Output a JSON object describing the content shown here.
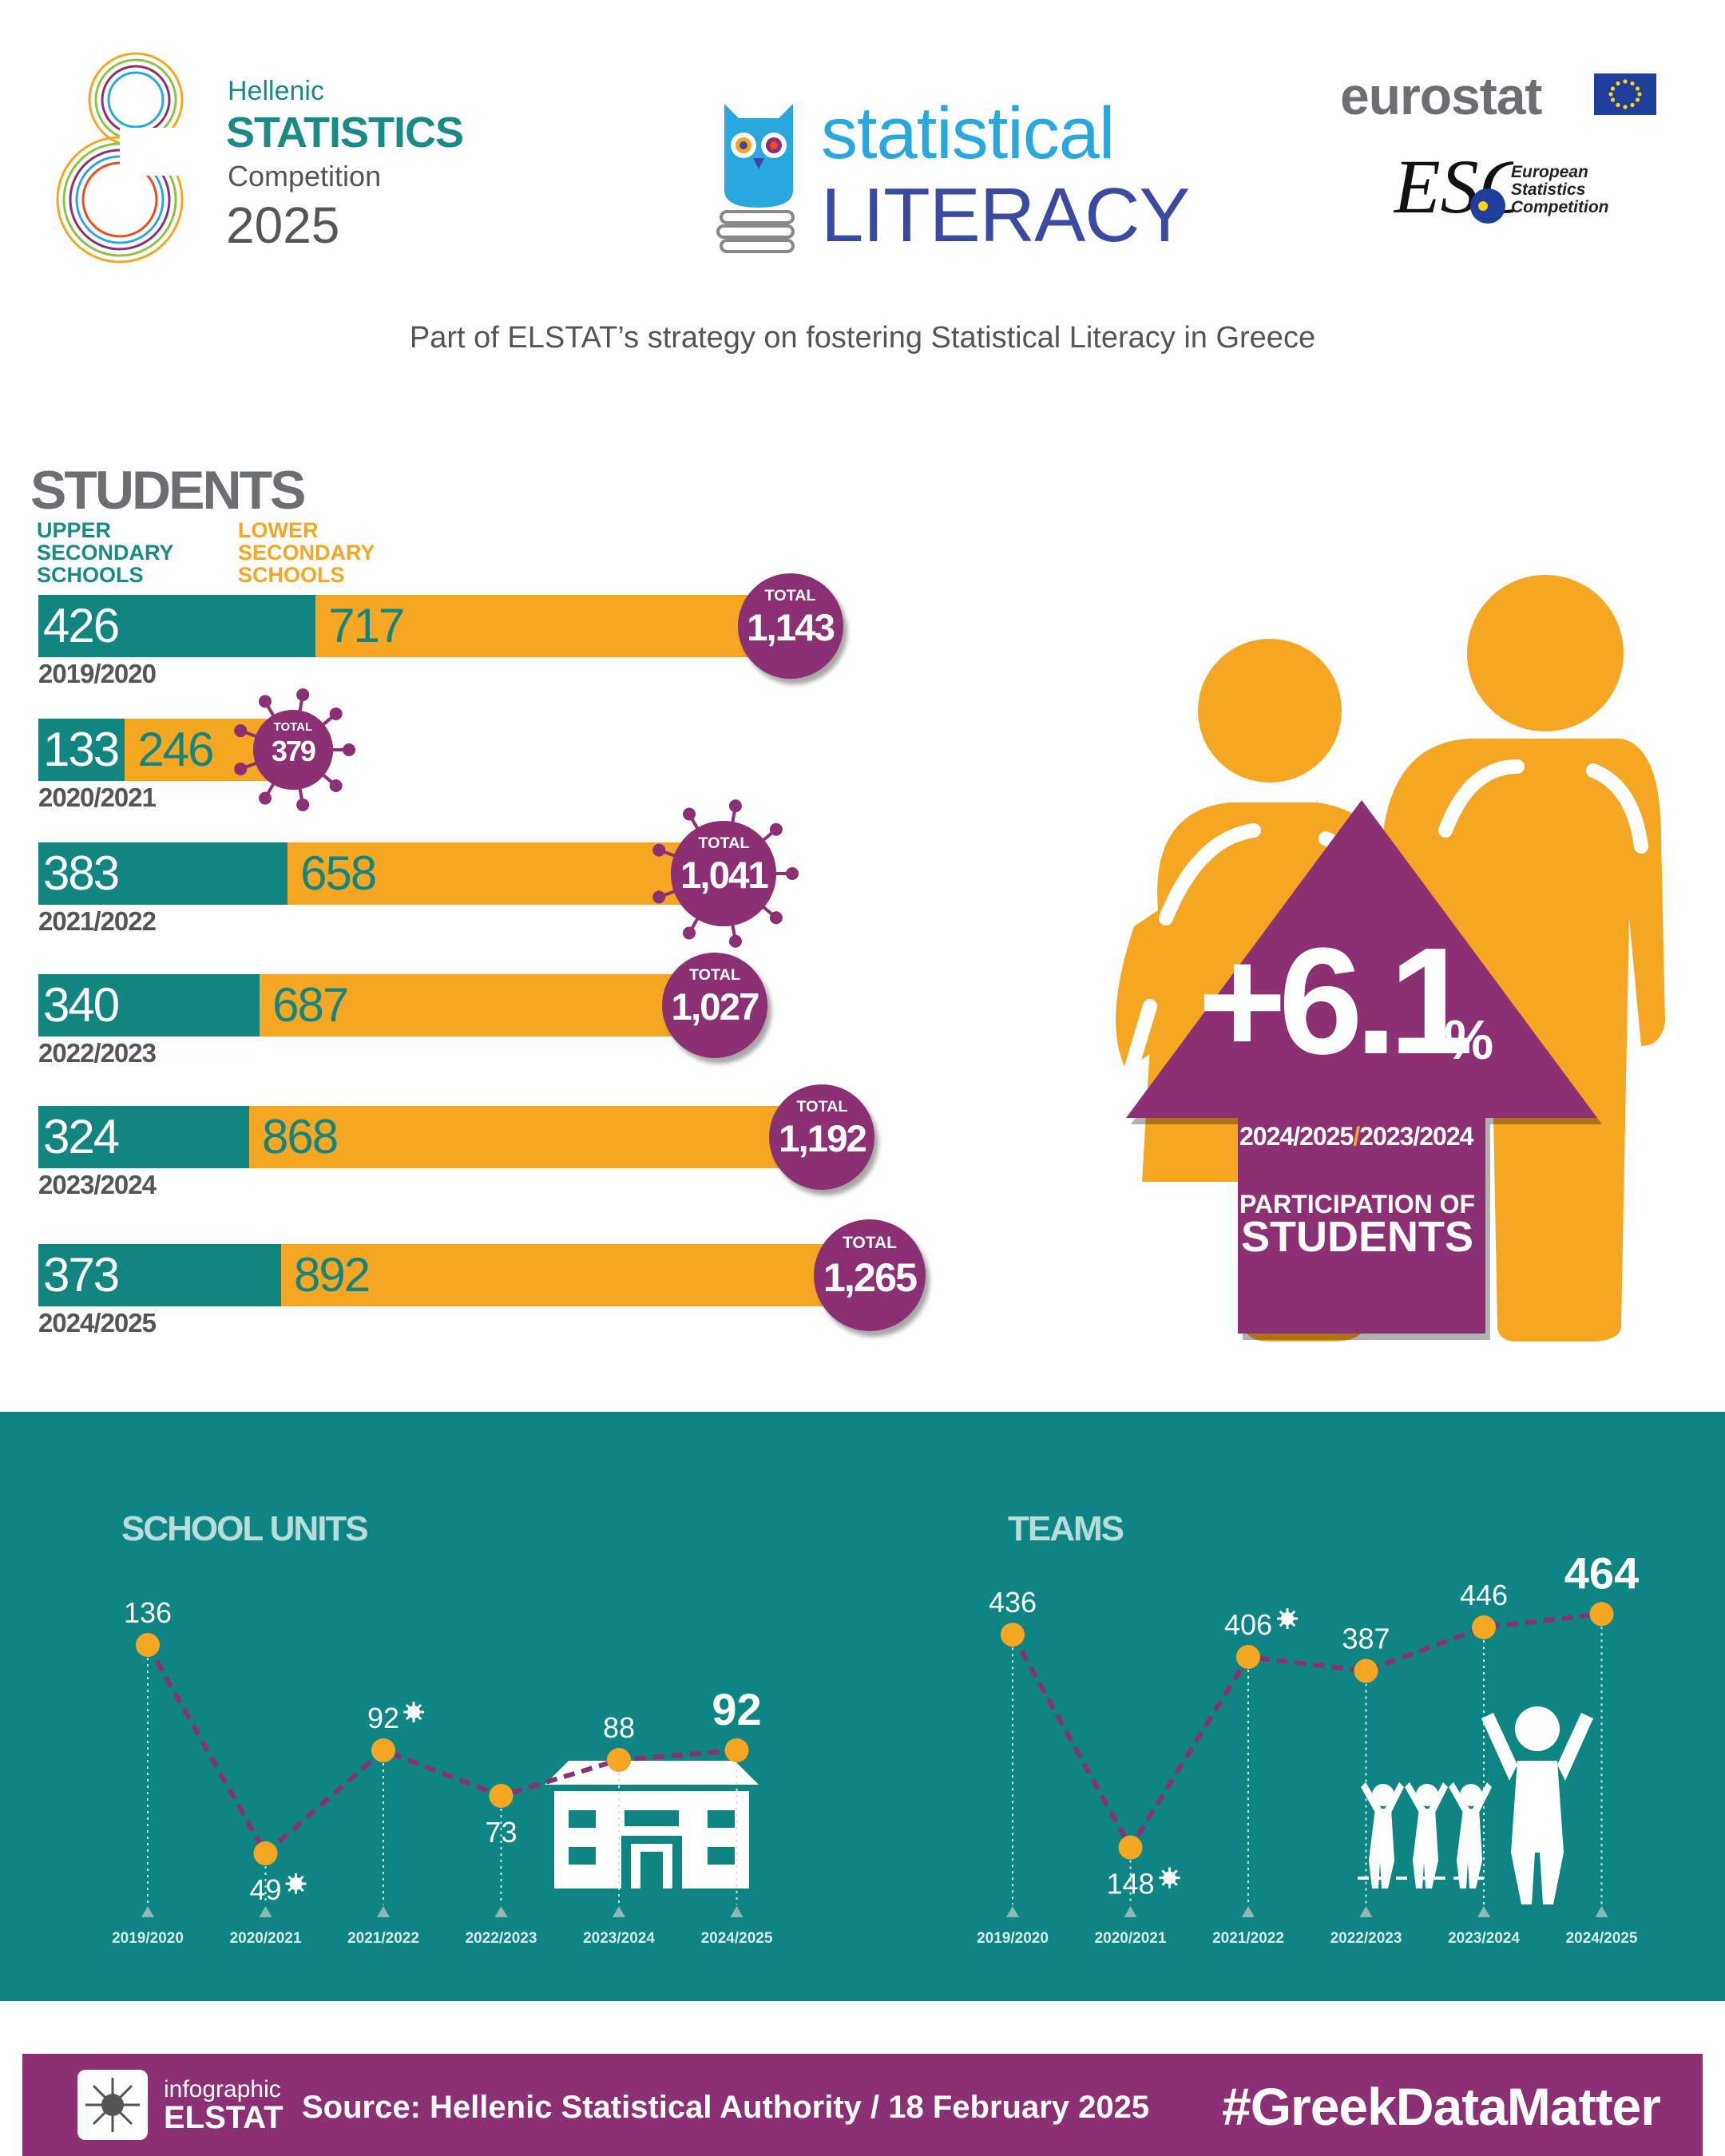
{
  "header": {
    "competition_line1": "Hellenic",
    "competition_line2": "STATISTICS",
    "competition_line3": "Competition",
    "competition_year": "2025",
    "literacy_word1": "statistical",
    "literacy_word2": "LITERACY",
    "eurostat": "eurostat",
    "esc_logo_letters": "ESC",
    "esc_line1": "European",
    "esc_line2": "Statistics",
    "esc_line3": "Competition"
  },
  "tagline": "Part of ELSTAT’s strategy on fostering Statistical Literacy in Greece",
  "students": {
    "heading": "STUDENTS",
    "legend_upper": "UPPER SECONDARY SCHOOLS",
    "legend_lower": "LOWER SECONDARY SCHOOLS",
    "total_label": "TOTAL"
  },
  "highlight": {
    "value": "+6.1",
    "unit": "%",
    "period_a": "2024/2025",
    "period_sep": "/",
    "period_b": "2023/2024",
    "label_line1": "PARTICIPATION OF",
    "label_line2": "STUDENTS"
  },
  "chart_data": [
    {
      "type": "bar",
      "stacked": true,
      "orientation": "horizontal",
      "title": "STUDENTS",
      "categories": [
        "2019/2020",
        "2020/2021",
        "2021/2022",
        "2022/2023",
        "2023/2024",
        "2024/2025"
      ],
      "series": [
        {
          "name": "UPPER SECONDARY SCHOOLS",
          "values": [
            426,
            133,
            383,
            340,
            324,
            373
          ],
          "color": "#138581"
        },
        {
          "name": "LOWER SECONDARY SCHOOLS",
          "values": [
            717,
            246,
            658,
            687,
            868,
            892
          ],
          "color": "#f5a623"
        }
      ],
      "labels": [
        "426",
        "133",
        "383",
        "340",
        "324",
        "373"
      ],
      "labels_lower": [
        "717",
        "246",
        "658",
        "687",
        "868",
        "892"
      ],
      "totals": [
        1143,
        379,
        1041,
        1027,
        1192,
        1265
      ],
      "total_labels": [
        "1,143",
        "379",
        "1,041",
        "1,027",
        "1,192",
        "1,265"
      ],
      "covid_marked": [
        "2020/2021",
        "2021/2022"
      ]
    },
    {
      "type": "line",
      "title": "SCHOOL UNITS",
      "x": [
        "2019/2020",
        "2020/2021",
        "2021/2022",
        "2022/2023",
        "2023/2024",
        "2024/2025"
      ],
      "y": [
        136,
        49,
        92,
        73,
        88,
        92
      ],
      "covid_marked": [
        "2020/2021",
        "2021/2022"
      ],
      "highlight_last": true,
      "ylim": [
        30,
        150
      ]
    },
    {
      "type": "line",
      "title": "TEAMS",
      "x": [
        "2019/2020",
        "2020/2021",
        "2021/2022",
        "2022/2023",
        "2023/2024",
        "2024/2025"
      ],
      "y": [
        436,
        148,
        406,
        387,
        446,
        464
      ],
      "covid_marked": [
        "2020/2021",
        "2021/2022"
      ],
      "highlight_last": true,
      "ylim": [
        100,
        500
      ]
    }
  ],
  "footer": {
    "label_small": "infographic",
    "label_big": "ELSTAT",
    "source": "Source: Hellenic Statistical Authority / 18 February 2025",
    "hashtag": "#GreekDataMatter"
  },
  "colors": {
    "teal": "#138581",
    "orange": "#f5a623",
    "purple": "#8b3073",
    "panel": "#0e8583"
  }
}
